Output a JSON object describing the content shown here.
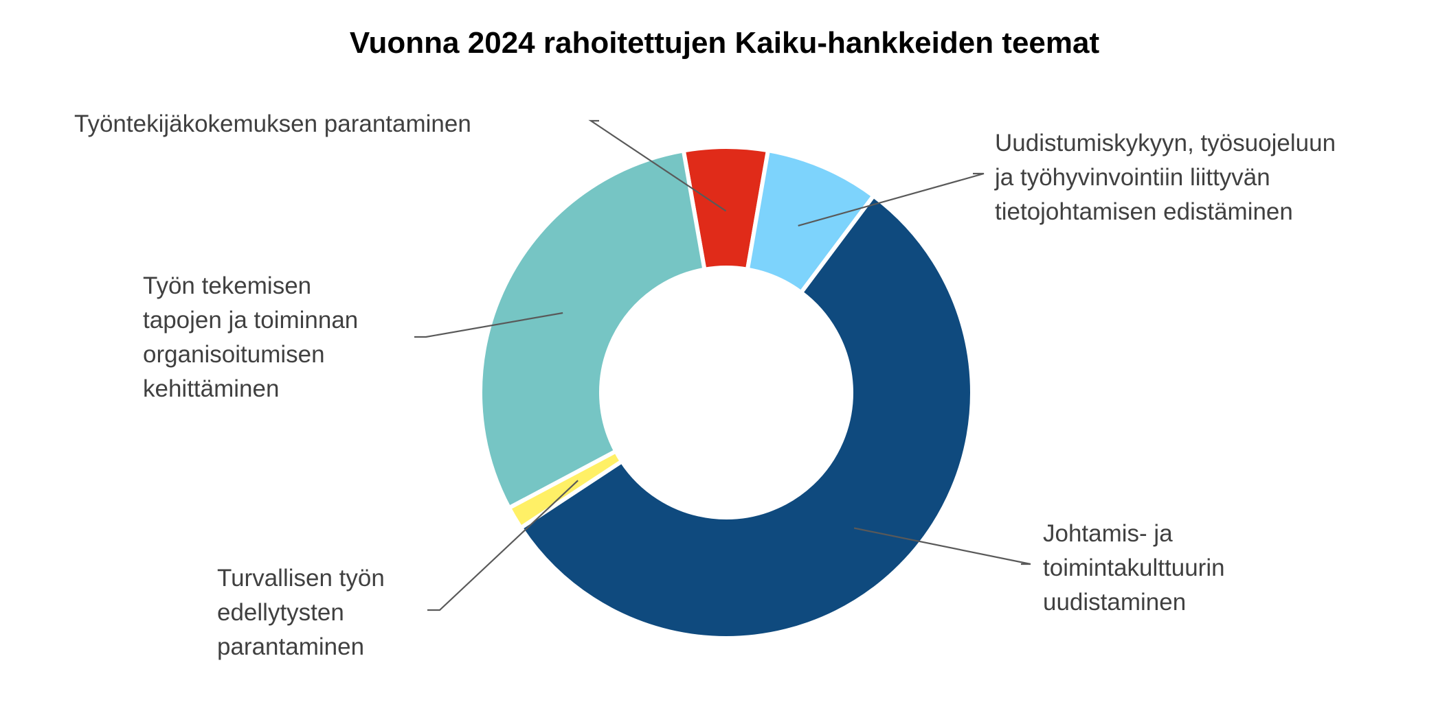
{
  "chart_data": {
    "type": "pie",
    "donut": true,
    "title": "Vuonna 2024 rahoitettujen Kaiku-hankkeiden teemat",
    "slices": [
      {
        "label": "Työntekijäkokemuksen parantaminen",
        "lines": [
          "Työntekijäkokemuksen parantaminen"
        ],
        "value": 5.5,
        "color": "#E02B19"
      },
      {
        "label": "Uudistumiskykyyn, työsuojeluun ja työhyvinvointiin liittyvän tietojohtamisen edistäminen",
        "lines": [
          "Uudistumiskykyyn, työsuojeluun",
          "ja työhyvinvointiin liittyvän",
          "tietojohtamisen edistäminen"
        ],
        "value": 7.5,
        "color": "#7DD3FC"
      },
      {
        "label": "Johtamis- ja toimintakulttuurin uudistaminen",
        "lines": [
          "Johtamis- ja",
          "toimintakulttuurin",
          "uudistaminen"
        ],
        "value": 55.5,
        "color": "#0F4A7E"
      },
      {
        "label": "Turvallisen työn edellytysten parantaminen",
        "lines": [
          "Turvallisen työn",
          "edellytysten",
          "parantaminen"
        ],
        "value": 1.5,
        "color": "#FFF066"
      },
      {
        "label": "Työn tekemisen tapojen ja toiminnan organisoitumisen kehittäminen",
        "lines": [
          "Työn tekemisen",
          "tapojen ja toiminnan",
          "organisoitumisen",
          "kehittäminen"
        ],
        "value": 30.0,
        "color": "#76C5C4"
      }
    ]
  }
}
